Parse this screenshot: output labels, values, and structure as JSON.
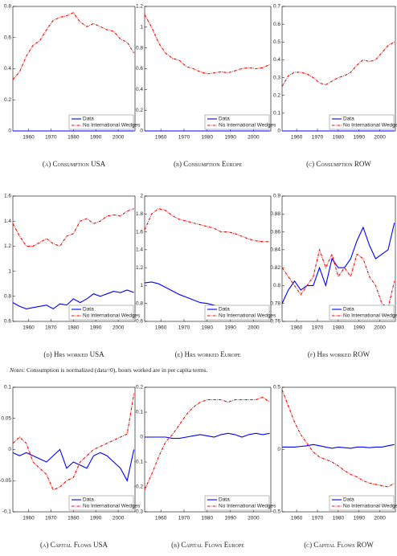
{
  "chart_data": [
    {
      "type": "line",
      "caption": "(a) Consumption USA",
      "x": [
        1953,
        1956,
        1959,
        1962,
        1965,
        1968,
        1971,
        1974,
        1977,
        1980,
        1983,
        1986,
        1989,
        1992,
        1995,
        1998,
        2001,
        2004,
        2007
      ],
      "xlim": [
        1953,
        2007.5
      ],
      "xticks": [
        1960,
        1970,
        1980,
        1990,
        2000
      ],
      "ylim": [
        0,
        0.8
      ],
      "yticks": [
        0,
        0.2,
        0.4,
        0.6,
        0.8
      ],
      "legend": "lower right",
      "series": [
        {
          "name": "Data",
          "color": "#0000ff",
          "values": [
            0,
            0,
            0,
            0,
            0,
            0,
            0,
            0,
            0,
            0,
            0,
            0,
            0,
            0,
            0,
            0,
            0,
            0,
            0
          ]
        },
        {
          "name": "No International Wedges",
          "color": "#ff0000",
          "values": [
            0.33,
            0.38,
            0.48,
            0.55,
            0.58,
            0.65,
            0.71,
            0.73,
            0.74,
            0.76,
            0.7,
            0.67,
            0.69,
            0.67,
            0.65,
            0.64,
            0.59,
            0.57,
            0.5
          ]
        }
      ]
    },
    {
      "type": "line",
      "caption": "(b) Consumption Europe",
      "x": [
        1953,
        1956,
        1959,
        1962,
        1965,
        1968,
        1971,
        1974,
        1977,
        1980,
        1983,
        1986,
        1989,
        1992,
        1995,
        1998,
        2001,
        2004,
        2007
      ],
      "xlim": [
        1953,
        2007.5
      ],
      "xticks": [
        1960,
        1970,
        1980,
        1990,
        2000
      ],
      "ylim": [
        0,
        1.2
      ],
      "yticks": [
        0,
        0.2,
        0.4,
        0.6,
        0.8,
        1,
        1.2
      ],
      "legend": "lower right",
      "series": [
        {
          "name": "Data",
          "color": "#0000ff",
          "values": [
            0,
            0,
            0,
            0,
            0,
            0,
            0,
            0,
            0,
            0,
            0,
            0,
            0,
            0,
            0,
            0,
            0,
            0,
            0
          ]
        },
        {
          "name": "No International Wedges",
          "color": "#ff0000",
          "values": [
            1.12,
            1.0,
            0.85,
            0.75,
            0.7,
            0.68,
            0.62,
            0.6,
            0.57,
            0.55,
            0.56,
            0.57,
            0.56,
            0.58,
            0.6,
            0.61,
            0.6,
            0.61,
            0.64
          ]
        }
      ]
    },
    {
      "type": "line",
      "caption": "(c) Consumption ROW",
      "x": [
        1953,
        1956,
        1959,
        1962,
        1965,
        1968,
        1971,
        1974,
        1977,
        1980,
        1983,
        1986,
        1989,
        1992,
        1995,
        1998,
        2001,
        2004,
        2007
      ],
      "xlim": [
        1953,
        2007.5
      ],
      "xticks": [
        1960,
        1970,
        1980,
        1990,
        2000
      ],
      "ylim": [
        0,
        0.7
      ],
      "yticks": [
        0,
        0.1,
        0.2,
        0.3,
        0.4,
        0.5,
        0.6,
        0.7
      ],
      "legend": "lower right",
      "series": [
        {
          "name": "Data",
          "color": "#0000ff",
          "values": [
            0,
            0,
            0,
            0,
            0,
            0,
            0,
            0,
            0,
            0,
            0,
            0,
            0,
            0,
            0,
            0,
            0,
            0,
            0
          ]
        },
        {
          "name": "No International Wedges",
          "color": "#ff0000",
          "values": [
            0.25,
            0.31,
            0.33,
            0.33,
            0.32,
            0.3,
            0.27,
            0.26,
            0.28,
            0.3,
            0.31,
            0.33,
            0.37,
            0.4,
            0.39,
            0.4,
            0.44,
            0.48,
            0.5
          ]
        }
      ]
    },
    {
      "type": "line",
      "caption": "(d) Hrs worked USA",
      "x": [
        1953,
        1956,
        1959,
        1962,
        1965,
        1968,
        1971,
        1974,
        1977,
        1980,
        1983,
        1986,
        1989,
        1992,
        1995,
        1998,
        2001,
        2004,
        2007
      ],
      "xlim": [
        1953,
        2007.5
      ],
      "xticks": [
        1960,
        1970,
        1980,
        1990,
        2000
      ],
      "ylim": [
        0.6,
        1.6
      ],
      "yticks": [
        0.6,
        0.8,
        1,
        1.2,
        1.4,
        1.6
      ],
      "legend": "lower right",
      "series": [
        {
          "name": "Data",
          "color": "#0000ff",
          "values": [
            0.75,
            0.72,
            0.7,
            0.71,
            0.72,
            0.73,
            0.7,
            0.74,
            0.73,
            0.78,
            0.75,
            0.78,
            0.82,
            0.8,
            0.82,
            0.84,
            0.83,
            0.85,
            0.83
          ]
        },
        {
          "name": "No International Wedges",
          "color": "#ff0000",
          "values": [
            1.38,
            1.28,
            1.2,
            1.2,
            1.23,
            1.26,
            1.22,
            1.2,
            1.28,
            1.3,
            1.4,
            1.42,
            1.38,
            1.4,
            1.44,
            1.45,
            1.44,
            1.48,
            1.5
          ]
        }
      ]
    },
    {
      "type": "line",
      "caption": "(e) Hrs worked Europe",
      "x": [
        1953,
        1956,
        1959,
        1962,
        1965,
        1968,
        1971,
        1974,
        1977,
        1980,
        1983,
        1986,
        1989,
        1992,
        1995,
        1998,
        2001,
        2004,
        2007
      ],
      "xlim": [
        1953,
        2007.5
      ],
      "xticks": [
        1960,
        1970,
        1980,
        1990,
        2000
      ],
      "ylim": [
        0.6,
        2
      ],
      "yticks": [
        0.6,
        0.8,
        1,
        1.2,
        1.4,
        1.6,
        1.8,
        2
      ],
      "legend": "lower right",
      "series": [
        {
          "name": "Data",
          "color": "#0000ff",
          "values": [
            1.03,
            1.04,
            1.02,
            0.98,
            0.94,
            0.9,
            0.87,
            0.84,
            0.81,
            0.8,
            0.78,
            0.76,
            0.75,
            0.74,
            0.73,
            0.72,
            0.71,
            0.71,
            0.71
          ]
        },
        {
          "name": "No International Wedges",
          "color": "#ff0000",
          "values": [
            1.62,
            1.8,
            1.86,
            1.84,
            1.78,
            1.74,
            1.72,
            1.7,
            1.68,
            1.66,
            1.64,
            1.6,
            1.6,
            1.58,
            1.55,
            1.52,
            1.5,
            1.49,
            1.49
          ]
        }
      ]
    },
    {
      "type": "line",
      "caption": "(f) Hrs worked ROW",
      "x": [
        1953,
        1956,
        1959,
        1962,
        1965,
        1968,
        1971,
        1974,
        1977,
        1980,
        1983,
        1986,
        1989,
        1992,
        1995,
        1998,
        2001,
        2004,
        2007
      ],
      "xlim": [
        1953,
        2007.5
      ],
      "xticks": [
        1960,
        1970,
        1980,
        1990,
        2000
      ],
      "ylim": [
        0.76,
        0.9
      ],
      "yticks": [
        0.76,
        0.78,
        0.8,
        0.82,
        0.84,
        0.86,
        0.88,
        0.9
      ],
      "legend": "lower right",
      "series": [
        {
          "name": "Data",
          "color": "#0000ff",
          "values": [
            0.78,
            0.795,
            0.805,
            0.795,
            0.8,
            0.8,
            0.82,
            0.8,
            0.83,
            0.82,
            0.82,
            0.83,
            0.85,
            0.865,
            0.845,
            0.83,
            0.835,
            0.84,
            0.87
          ]
        },
        {
          "name": "No International Wedges",
          "color": "#ff0000",
          "values": [
            0.82,
            0.81,
            0.8,
            0.79,
            0.8,
            0.81,
            0.84,
            0.82,
            0.835,
            0.81,
            0.82,
            0.81,
            0.835,
            0.83,
            0.81,
            0.8,
            0.78,
            0.775,
            0.805
          ]
        }
      ]
    },
    {
      "type": "line",
      "caption": "(a) Capital Flows USA",
      "x": [
        1953,
        1956,
        1959,
        1962,
        1965,
        1968,
        1971,
        1974,
        1977,
        1980,
        1983,
        1986,
        1989,
        1992,
        1995,
        1998,
        2001,
        2004,
        2007
      ],
      "xlim": [
        1953,
        2007.5
      ],
      "xticks": [
        1960,
        1970,
        1980,
        1990,
        2000
      ],
      "ylim": [
        -0.1,
        0.1
      ],
      "yticks": [
        -0.1,
        -0.05,
        0,
        0.05,
        0.1
      ],
      "legend": "lower right",
      "series": [
        {
          "name": "Data",
          "color": "#0000ff",
          "values": [
            -0.005,
            -0.01,
            -0.005,
            -0.01,
            -0.015,
            -0.02,
            -0.01,
            0,
            -0.03,
            -0.02,
            -0.025,
            -0.03,
            -0.01,
            -0.005,
            -0.01,
            -0.02,
            -0.03,
            -0.05,
            0
          ]
        },
        {
          "name": "No International Wedges",
          "color": "#ff0000",
          "values": [
            0.01,
            0.02,
            0.01,
            -0.02,
            -0.03,
            -0.04,
            -0.065,
            -0.06,
            -0.05,
            -0.045,
            -0.02,
            -0.01,
            0,
            0.005,
            0.01,
            0.015,
            0.02,
            0.025,
            0.09
          ]
        }
      ]
    },
    {
      "type": "line",
      "caption": "(b) Capital Flows Europe",
      "x": [
        1953,
        1956,
        1959,
        1962,
        1965,
        1968,
        1971,
        1974,
        1977,
        1980,
        1983,
        1986,
        1989,
        1992,
        1995,
        1998,
        2001,
        2004,
        2007
      ],
      "xlim": [
        1953,
        2007.5
      ],
      "xticks": [
        1960,
        1970,
        1980,
        1990,
        2000
      ],
      "ylim": [
        -0.3,
        0.2
      ],
      "yticks": [
        -0.3,
        -0.2,
        -0.1,
        0,
        0.1,
        0.2
      ],
      "legend": "lower right",
      "series": [
        {
          "name": "Data",
          "color": "#0000ff",
          "values": [
            0,
            0,
            0,
            0,
            -0.005,
            -0.005,
            0,
            0.005,
            0.01,
            0.005,
            0,
            0.01,
            0.015,
            0.01,
            0,
            0.01,
            0.015,
            0.01,
            0.015
          ]
        },
        {
          "name": "No International Wedges",
          "color": "#ff0000",
          "values": [
            -0.21,
            -0.15,
            -0.08,
            -0.02,
            0.01,
            0.05,
            0.09,
            0.12,
            0.14,
            0.15,
            0.15,
            0.15,
            0.14,
            0.15,
            0.15,
            0.15,
            0.15,
            0.16,
            0.14
          ]
        }
      ]
    },
    {
      "type": "line",
      "caption": "(c) Capital Flows ROW",
      "x": [
        1953,
        1956,
        1959,
        1962,
        1965,
        1968,
        1971,
        1974,
        1977,
        1980,
        1983,
        1986,
        1989,
        1992,
        1995,
        1998,
        2001,
        2004,
        2007
      ],
      "xlim": [
        1953,
        2007.5
      ],
      "xticks": [
        1960,
        1970,
        1980,
        1990,
        2000
      ],
      "ylim": [
        -0.5,
        0.5
      ],
      "yticks": [
        -0.5,
        0,
        0.5
      ],
      "legend": "lower right",
      "series": [
        {
          "name": "Data",
          "color": "#0000ff",
          "values": [
            0.02,
            0.02,
            0.02,
            0.025,
            0.03,
            0.04,
            0.03,
            0.02,
            0.01,
            0.02,
            0.015,
            0.01,
            0.02,
            0.02,
            0.015,
            0.02,
            0.02,
            0.03,
            0.04
          ]
        },
        {
          "name": "No International Wedges",
          "color": "#ff0000",
          "values": [
            0.48,
            0.35,
            0.22,
            0.12,
            0.05,
            -0.02,
            -0.06,
            -0.08,
            -0.1,
            -0.13,
            -0.17,
            -0.2,
            -0.22,
            -0.25,
            -0.27,
            -0.28,
            -0.29,
            -0.3,
            -0.27
          ]
        }
      ]
    }
  ],
  "notes": {
    "label": "Notes",
    "text": ": Consumption is normalized (data=0), hours worked are in per capita terms."
  }
}
